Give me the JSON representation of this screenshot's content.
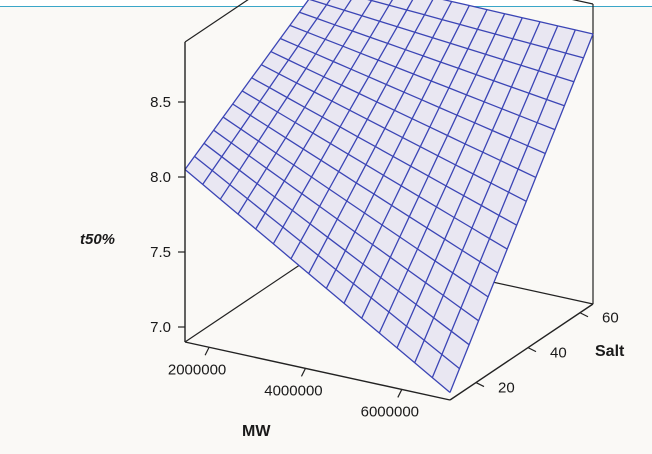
{
  "chart_data": {
    "type": "surface",
    "title": "",
    "xlabel": "MW",
    "ylabel": "Salt",
    "zlabel": "t50%",
    "x_ticks": [
      2000000,
      4000000,
      6000000
    ],
    "x_tick_labels": [
      "2000000",
      "4000000",
      "6000000"
    ],
    "y_ticks": [
      20,
      40,
      60
    ],
    "y_tick_labels": [
      "20",
      "40",
      "60"
    ],
    "z_ticks": [
      7.0,
      7.5,
      8.0,
      8.5
    ],
    "z_tick_labels": [
      "7.0",
      "7.5",
      "8.0",
      "8.5"
    ],
    "xlim": [
      1500000,
      7000000
    ],
    "ylim": [
      10,
      65
    ],
    "zlim": [
      6.9,
      8.9
    ],
    "grid": false,
    "surface": {
      "x_range": [
        1500000,
        7000000
      ],
      "y_range": [
        10,
        65
      ],
      "divisions": 15,
      "corner_values": {
        "x_min_y_min": 8.05,
        "x_min_y_max": 8.72,
        "x_max_y_min": 6.95,
        "x_max_y_max": 8.7
      }
    },
    "colors": {
      "mesh_line": "#3b45b5",
      "mesh_fill": "#e9e7f2",
      "box_line": "#222222",
      "background": "#faf9f6"
    }
  }
}
